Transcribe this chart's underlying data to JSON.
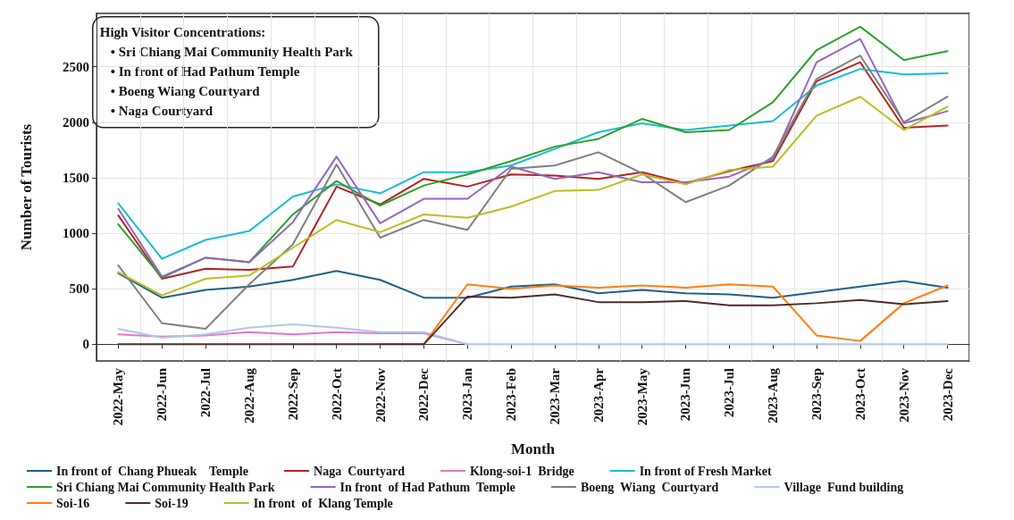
{
  "chart_data": {
    "type": "line",
    "xlabel": "Month",
    "ylabel": "Number of Tourists",
    "categories": [
      "2022-May",
      "2022-Jun",
      "2022-Jul",
      "2022-Aug",
      "2022-Sep",
      "2022-Oct",
      "2022-Nov",
      "2022-Dec",
      "2023-Jan",
      "2023-Feb",
      "2023-Mar",
      "2023-Apr",
      "2023-May",
      "2023-Jun",
      "2023-Jul",
      "2023-Aug",
      "2023-Sep",
      "2023-Oct",
      "2023-Nov",
      "2023-Dec"
    ],
    "ylim": [
      -150,
      2980
    ],
    "yticks": [
      0,
      500,
      1000,
      1500,
      2000,
      2500
    ],
    "grid": true,
    "legend": "bottom",
    "marker": "none",
    "line_style": "solid",
    "annotations": [
      "High Visitor Concentrations:",
      "• Sri Chiang Mai Community Health Park",
      "• In front of Had Pathum Temple",
      "• Boeng Wiang Courtyard",
      "• Naga Courtyard"
    ],
    "series": [
      {
        "name": "In front of  Chang Phueak    Temple",
        "color": "#1f5f8b",
        "values": [
          640,
          420,
          490,
          520,
          580,
          660,
          580,
          420,
          420,
          520,
          540,
          460,
          490,
          460,
          450,
          420,
          470,
          520,
          570,
          510
        ]
      },
      {
        "name": "Naga  Courtyard",
        "color": "#b22222",
        "values": [
          1160,
          590,
          680,
          670,
          700,
          1420,
          1260,
          1490,
          1420,
          1530,
          1520,
          1490,
          1550,
          1450,
          1560,
          1650,
          2370,
          2540,
          1950,
          1970
        ]
      },
      {
        "name": "Klong-soi-1  Bridge",
        "color": "#e377c2",
        "values": [
          90,
          70,
          80,
          110,
          90,
          110,
          100,
          100,
          0,
          null,
          null,
          null,
          null,
          null,
          null,
          null,
          null,
          null,
          null,
          null
        ]
      },
      {
        "name": "In front of Fresh Market",
        "color": "#17becf",
        "values": [
          1270,
          770,
          940,
          1020,
          1330,
          1440,
          1360,
          1550,
          1550,
          1610,
          1760,
          1910,
          1990,
          1930,
          1970,
          2010,
          2330,
          2480,
          2430,
          2440
        ]
      },
      {
        "name": "Sri Chiang Mai Community Health Park",
        "color": "#2ca02c",
        "values": [
          1080,
          600,
          780,
          740,
          1170,
          1470,
          1250,
          1430,
          1530,
          1650,
          1780,
          1850,
          2030,
          1910,
          1930,
          2180,
          2650,
          2860,
          2560,
          2640
        ]
      },
      {
        "name": "In front  of Had Pathum  Temple",
        "color": "#9467bd",
        "values": [
          1220,
          610,
          780,
          740,
          1100,
          1690,
          1090,
          1310,
          1310,
          1600,
          1490,
          1550,
          1460,
          1460,
          1510,
          1670,
          2540,
          2750,
          1990,
          2100
        ]
      },
      {
        "name": "Boeng  Wiang  Courtyard",
        "color": "#7f7f7f",
        "values": [
          710,
          190,
          140,
          540,
          900,
          1620,
          960,
          1120,
          1030,
          1580,
          1610,
          1730,
          1540,
          1280,
          1430,
          1690,
          2390,
          2600,
          2000,
          2230
        ]
      },
      {
        "name": "Village  Fund building",
        "color": "#aec7e8",
        "values": [
          140,
          60,
          90,
          150,
          180,
          150,
          110,
          110,
          0,
          0,
          0,
          0,
          0,
          0,
          0,
          0,
          0,
          0,
          0,
          0
        ]
      },
      {
        "name": "Soi-16",
        "color": "#ff7f0e",
        "values": [
          null,
          null,
          null,
          null,
          null,
          null,
          0,
          0,
          540,
          500,
          530,
          510,
          530,
          510,
          540,
          520,
          80,
          30,
          370,
          530
        ]
      },
      {
        "name": "Soi-19",
        "color": "#4b2c2c",
        "values": [
          0,
          0,
          0,
          0,
          0,
          0,
          0,
          0,
          430,
          420,
          450,
          380,
          380,
          390,
          350,
          350,
          370,
          400,
          360,
          390
        ]
      },
      {
        "name": "In front  of  Klang Temple",
        "color": "#bcbd22",
        "values": [
          650,
          440,
          590,
          620,
          870,
          1120,
          1010,
          1170,
          1140,
          1240,
          1380,
          1390,
          1530,
          1440,
          1570,
          1600,
          2060,
          2230,
          1930,
          2140
        ]
      }
    ]
  }
}
